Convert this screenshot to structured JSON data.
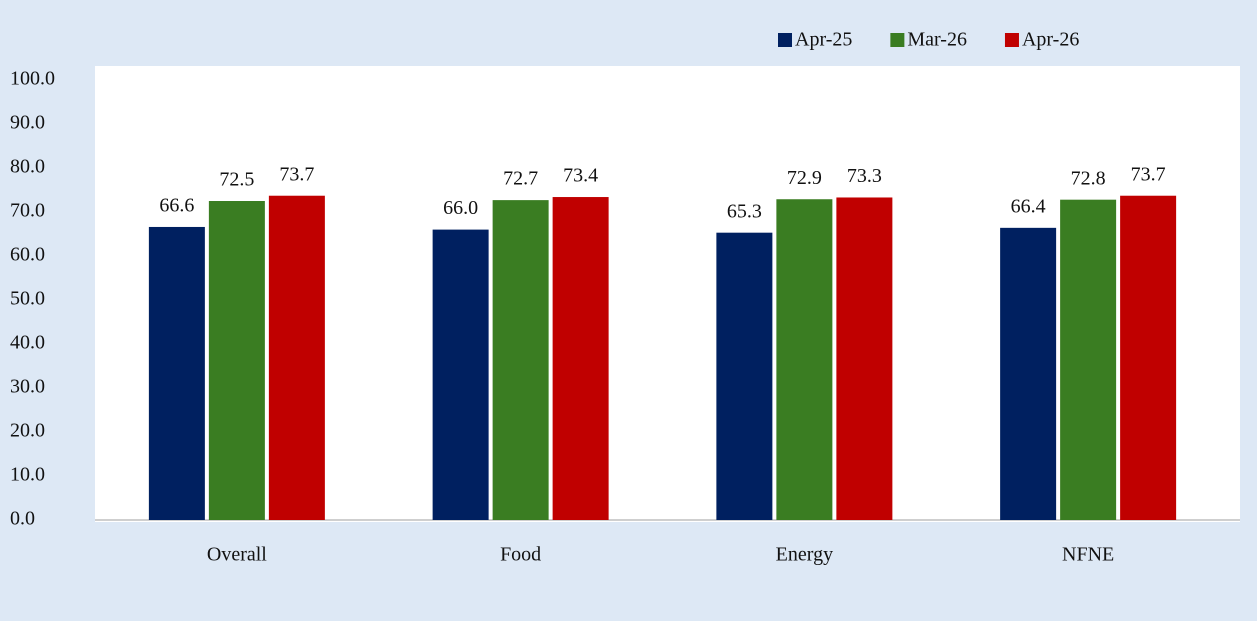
{
  "chart_data": {
    "type": "bar",
    "categories": [
      "Overall",
      "Food",
      "Energy",
      "NFNE"
    ],
    "series": [
      {
        "name": "Apr-25",
        "color": "#002060",
        "values": [
          66.6,
          66,
          65.3,
          66.4
        ],
        "value_labels": [
          "66.6",
          "66.0",
          "65.3",
          "66.4"
        ]
      },
      {
        "name": "Mar-26",
        "color": "#3a7d22",
        "values": [
          72.5,
          72.7,
          72.9,
          72.8
        ],
        "value_labels": [
          "72.5",
          "72.7",
          "72.9",
          "72.8"
        ]
      },
      {
        "name": "Apr-26",
        "color": "#c00000",
        "values": [
          73.7,
          73.4,
          73.3,
          73.7
        ],
        "value_labels": [
          "73.7",
          "73.4",
          "73.3",
          "73.7"
        ]
      }
    ],
    "ylim": [
      0,
      100
    ],
    "yticks": [
      {
        "value": 0,
        "label": "0.0"
      },
      {
        "value": 10,
        "label": "10.0"
      },
      {
        "value": 20,
        "label": "20.0"
      },
      {
        "value": 30,
        "label": "30.0"
      },
      {
        "value": 40,
        "label": "40.0"
      },
      {
        "value": 50,
        "label": "50.0"
      },
      {
        "value": 60,
        "label": "60.0"
      },
      {
        "value": 70,
        "label": "70.0"
      },
      {
        "value": 80,
        "label": "80.0"
      },
      {
        "value": 90,
        "label": "90.0"
      },
      {
        "value": 100,
        "label": "100.0"
      }
    ],
    "legend": "top-right"
  }
}
